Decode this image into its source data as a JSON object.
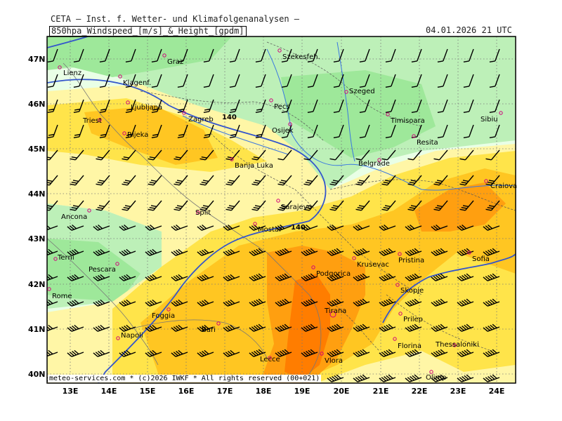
{
  "header": {
    "title": "CETA — Inst. f. Wetter- und Klimafolgenanalysen —",
    "product": "850hpa_Windspeed_[m/s]_&_Height_[gpdm]",
    "valid_time": "04.01.2026 21 UTC"
  },
  "footer": {
    "credit": "meteo-services.com * (c)2026 IWKF * All rights reserved (00+021)"
  },
  "axes": {
    "lat_labels": [
      "47N",
      "46N",
      "45N",
      "44N",
      "43N",
      "42N",
      "41N",
      "40N"
    ],
    "lon_labels": [
      "13E",
      "14E",
      "15E",
      "16E",
      "17E",
      "18E",
      "19E",
      "20E",
      "21E",
      "22E",
      "23E",
      "24E"
    ]
  },
  "isohypses": [
    {
      "label": "140"
    },
    {
      "label": "140"
    }
  ],
  "colors": {
    "calm_light": "#e9ffe6",
    "green_mid": "#bdf0b8",
    "green": "#9ee89a",
    "yellow_light": "#fff6a6",
    "yellow": "#ffe44a",
    "gold": "#ffc622",
    "orange": "#ff9f10",
    "dark_orange": "#ff7d00",
    "contour": "#3355cc",
    "rivers": "#3a78e0",
    "cities": "#d0007a"
  },
  "cities": [
    {
      "name": "Graz"
    },
    {
      "name": "Szekesfeh."
    },
    {
      "name": "Lienz"
    },
    {
      "name": "Klagenf."
    },
    {
      "name": "Szeged"
    },
    {
      "name": "Ljubljana"
    },
    {
      "name": "Pecs"
    },
    {
      "name": "Triest"
    },
    {
      "name": "Zagreb"
    },
    {
      "name": "Timisoara"
    },
    {
      "name": "Sibiu"
    },
    {
      "name": "Osijek"
    },
    {
      "name": "Rijeka"
    },
    {
      "name": "Resita"
    },
    {
      "name": "Banja Luka"
    },
    {
      "name": "Belgrade"
    },
    {
      "name": "Craiova"
    },
    {
      "name": "Sarajevo"
    },
    {
      "name": "Split"
    },
    {
      "name": "Ancona"
    },
    {
      "name": "Mostar"
    },
    {
      "name": "Pristina"
    },
    {
      "name": "Sofia"
    },
    {
      "name": "Krusevac"
    },
    {
      "name": "Podgorica"
    },
    {
      "name": "Terni"
    },
    {
      "name": "Pescara"
    },
    {
      "name": "Skopje"
    },
    {
      "name": "Rome"
    },
    {
      "name": "Tirana"
    },
    {
      "name": "Prilep"
    },
    {
      "name": "Foggia"
    },
    {
      "name": "Bari"
    },
    {
      "name": "Napoli"
    },
    {
      "name": "Florina"
    },
    {
      "name": "Thessaloniki"
    },
    {
      "name": "Lecce"
    },
    {
      "name": "Vlora"
    },
    {
      "name": "Olimp"
    }
  ]
}
